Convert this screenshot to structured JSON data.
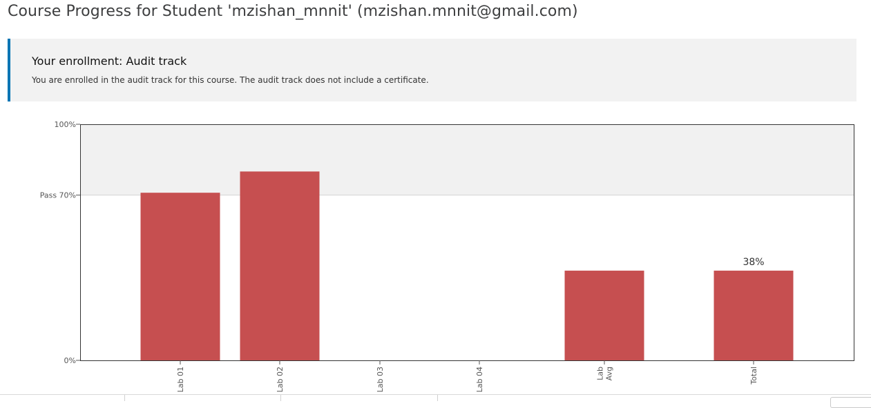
{
  "page": {
    "title": "Course Progress for Student 'mzishan_mnnit' (mzishan.mnnit@gmail.com)"
  },
  "enrollment": {
    "title": "Your enrollment: Audit track",
    "message": "You are enrolled in the audit track for this course. The audit track does not include a certificate."
  },
  "colors": {
    "accent": "#0075b4",
    "bar": "#c64f50",
    "pass_band": "#f1f1f1"
  },
  "chart_data": {
    "type": "bar",
    "categories": [
      [
        "Lab 01"
      ],
      [
        "Lab 02"
      ],
      [
        "Lab 03"
      ],
      [
        "Lab 04"
      ],
      [
        "Lab",
        "Avg"
      ],
      [
        "Total"
      ]
    ],
    "values": [
      71,
      80,
      0,
      0,
      38,
      38
    ],
    "value_labels": [
      "",
      "",
      "",
      "",
      "",
      "38%"
    ],
    "y_ticks": [
      {
        "value": 100,
        "label": "100%"
      },
      {
        "value": 70,
        "label": "Pass 70%"
      },
      {
        "value": 0,
        "label": "0%"
      }
    ],
    "ylim": [
      0,
      100
    ],
    "pass_threshold": 70,
    "grid": false,
    "legend": "none"
  }
}
